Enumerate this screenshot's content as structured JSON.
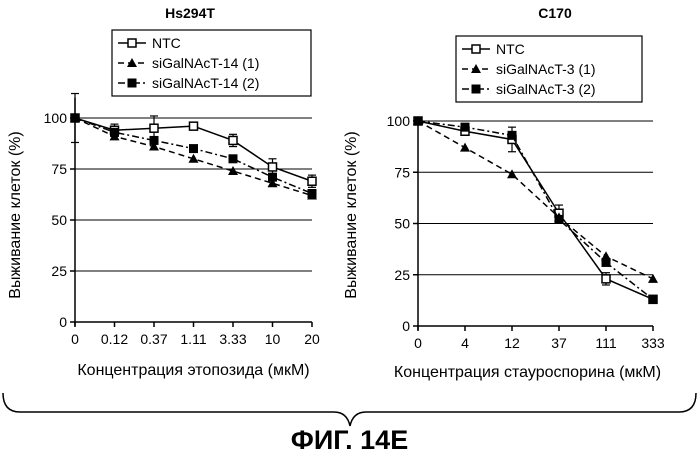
{
  "figure_label": "ФИГ. 14E",
  "chart_data": [
    {
      "type": "line",
      "title": "Hs294T",
      "xlabel": "Концентрация этопозида (мкМ)",
      "ylabel": "Выживание клеток (%)",
      "categories": [
        "0",
        "0.12",
        "0.37",
        "1.11",
        "3.33",
        "10",
        "20"
      ],
      "yticks": [
        "0",
        "25",
        "50",
        "75",
        "100"
      ],
      "ylim": [
        0,
        110
      ],
      "grid": "horizontal",
      "legend_position": "top-left",
      "series": [
        {
          "name": "NTC",
          "marker": "open-square",
          "line": "solid",
          "values": [
            100,
            94,
            95,
            96,
            89,
            76,
            69
          ]
        },
        {
          "name": "siGalNAcT-14 (1)",
          "marker": "triangle",
          "line": "dashed",
          "values": [
            100,
            91,
            86,
            80,
            74,
            68,
            62
          ]
        },
        {
          "name": "siGalNAcT-14 (2)",
          "marker": "filled-square",
          "line": "dash-dot",
          "values": [
            100,
            93,
            89,
            85,
            80,
            71,
            63
          ]
        }
      ]
    },
    {
      "type": "line",
      "title": "C170",
      "xlabel": "Концентрация стауроспорина (мкМ)",
      "ylabel": "Выживание клеток (%)",
      "categories": [
        "0",
        "4",
        "12",
        "37",
        "111",
        "333"
      ],
      "yticks": [
        "0",
        "25",
        "50",
        "75",
        "100"
      ],
      "ylim": [
        0,
        100
      ],
      "grid": "horizontal",
      "legend_position": "top-left",
      "series": [
        {
          "name": "NTC",
          "marker": "open-square",
          "line": "solid",
          "values": [
            100,
            95,
            91,
            55,
            23,
            13
          ]
        },
        {
          "name": "siGalNAcT-3 (1)",
          "marker": "triangle",
          "line": "dashed",
          "values": [
            100,
            87,
            74,
            53,
            34,
            23
          ]
        },
        {
          "name": "siGalNAcT-3 (2)",
          "marker": "filled-square",
          "line": "dash-dot",
          "values": [
            100,
            97,
            93,
            52,
            31,
            13
          ]
        }
      ]
    }
  ]
}
